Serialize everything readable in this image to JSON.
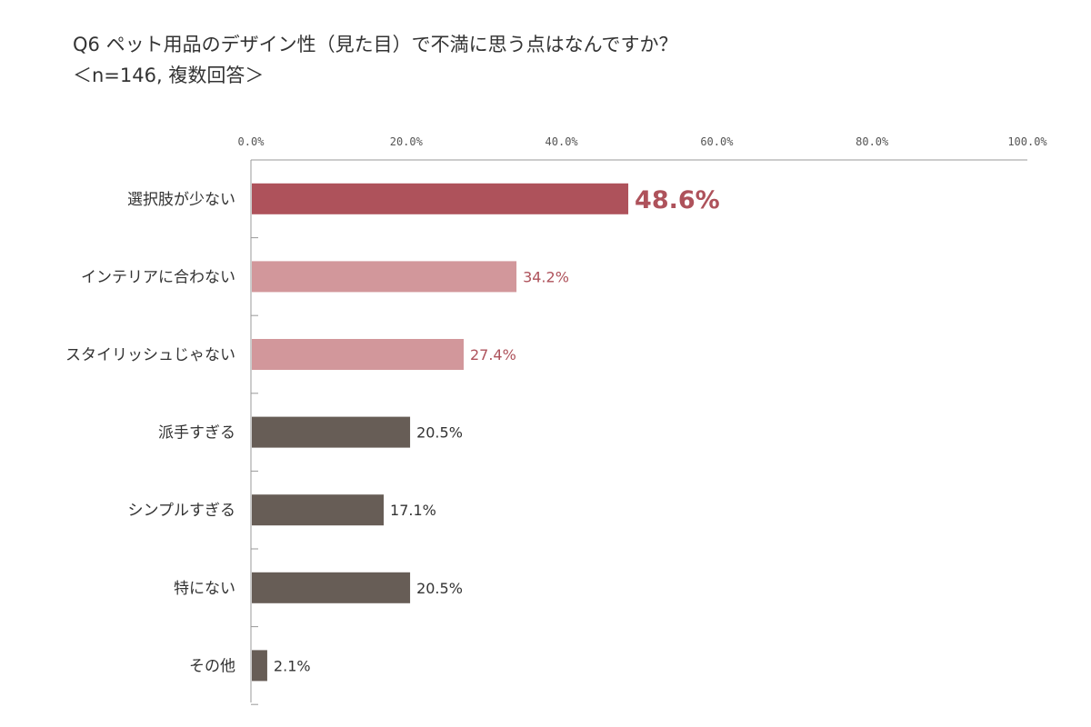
{
  "header": {
    "title": "Q6 ペット用品のデザイン性（見た目）で不満に思う点はなんですか？",
    "subtitle": "＜n=146, 複数回答＞"
  },
  "chart_data": {
    "type": "bar",
    "orientation": "horizontal",
    "title": "Q6 ペット用品のデザイン性（見た目）で不満に思う点はなんですか？",
    "subtitle": "＜n=146, 複数回答＞",
    "categories": [
      "選択肢が少ない",
      "インテリアに合わない",
      "スタイリッシュじゃない",
      "派手すぎる",
      "シンプルすぎる",
      "特にない",
      "その他"
    ],
    "values": [
      48.6,
      34.2,
      27.4,
      20.5,
      17.1,
      20.5,
      2.1
    ],
    "value_labels": [
      "48.6%",
      "34.2%",
      "27.4%",
      "20.5%",
      "17.1%",
      "20.5%",
      "2.1%"
    ],
    "xlim": [
      0,
      100
    ],
    "x_ticks": [
      "0.0%",
      "20.0%",
      "40.0%",
      "60.0%",
      "80.0%",
      "100.0%"
    ],
    "x_tick_values": [
      0,
      20,
      40,
      60,
      80,
      100
    ],
    "axis_position": "top",
    "grid": false,
    "legend": "none",
    "bar_colors": [
      "#ae525b",
      "#d2979b",
      "#d2979b",
      "#675d56",
      "#675d56",
      "#675d56",
      "#675d56"
    ],
    "label_colors": [
      "#ae525b",
      "#ae525b",
      "#ae525b",
      "#333333",
      "#333333",
      "#333333",
      "#333333"
    ],
    "highlight_index": 0
  }
}
